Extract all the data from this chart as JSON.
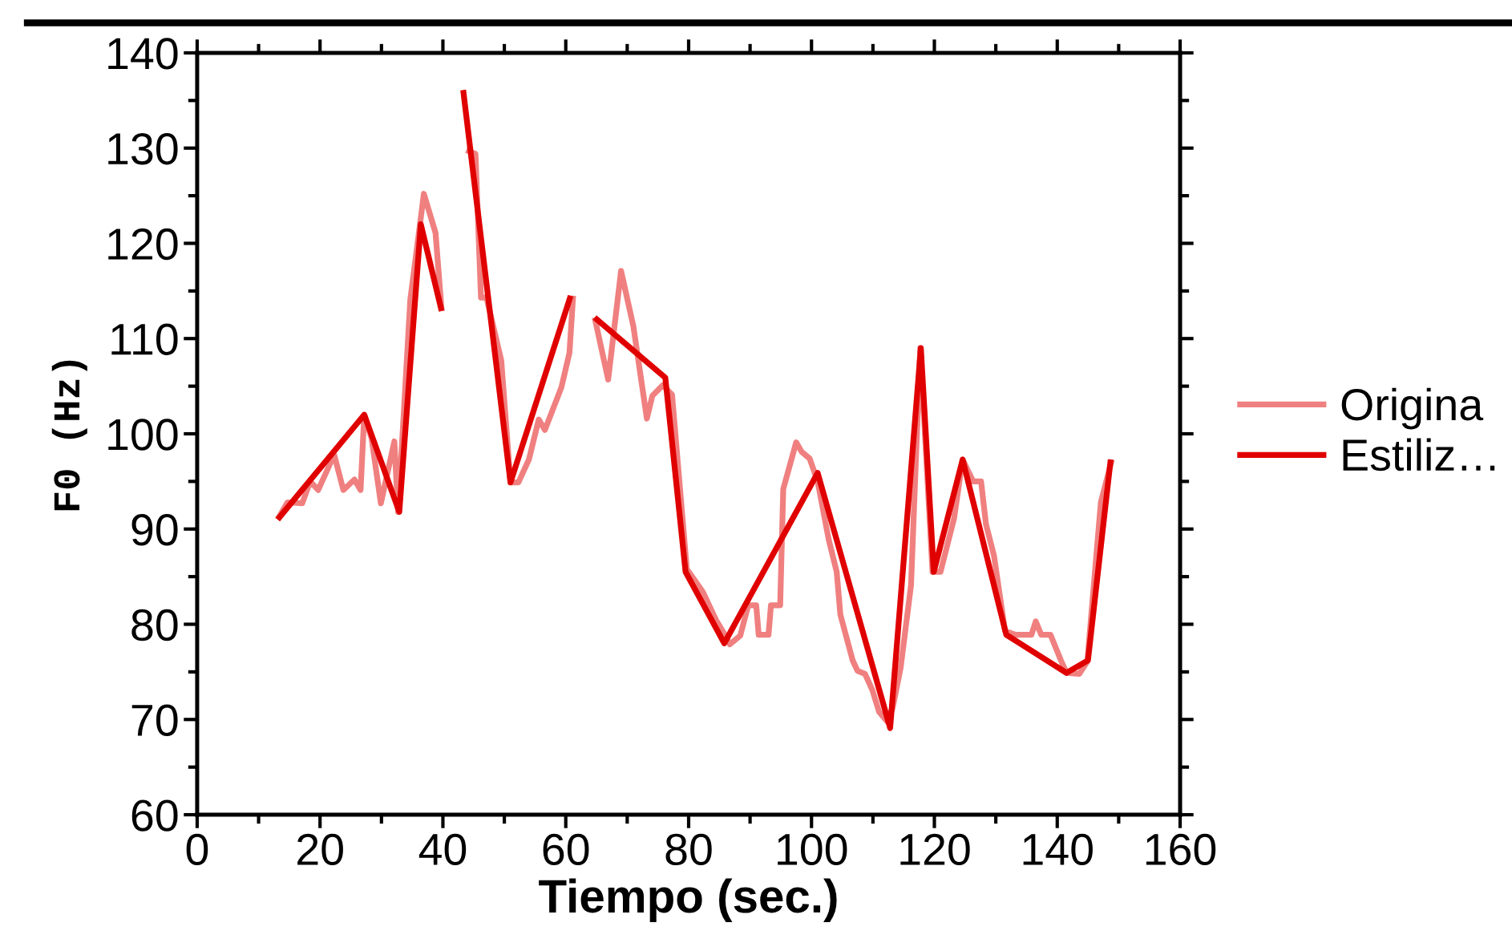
{
  "chart_data": {
    "type": "line",
    "xlabel": "Tiempo (sec.)",
    "ylabel": "F0 (Hz)",
    "xlim": [
      0,
      160
    ],
    "ylim": [
      60,
      140
    ],
    "xticks": [
      0,
      {
        "value": 10,
        "label": null
      },
      20,
      {
        "value": 30,
        "label": null
      },
      40,
      {
        "value": 50,
        "label": null
      },
      60,
      {
        "value": 70,
        "label": null
      },
      80,
      {
        "value": 90,
        "label": null
      },
      100,
      {
        "value": 110,
        "label": null
      },
      120,
      {
        "value": 130,
        "label": null
      },
      140,
      {
        "value": 150,
        "label": null
      },
      160
    ],
    "yticks": [
      60,
      {
        "value": 65,
        "label": null
      },
      70,
      {
        "value": 75,
        "label": null
      },
      80,
      {
        "value": 85,
        "label": null
      },
      90,
      {
        "value": 95,
        "label": null
      },
      100,
      {
        "value": 105,
        "label": null
      },
      110,
      {
        "value": 115,
        "label": null
      },
      120,
      {
        "value": 125,
        "label": null
      },
      130,
      {
        "value": 135,
        "label": null
      },
      140
    ],
    "grid": false,
    "legend": "right",
    "marker": "none",
    "line_style": "solid",
    "series": [
      {
        "name": "Origina",
        "color": "#f08080",
        "x": [
          13.1,
          14.7,
          17.1,
          18.4,
          19.7,
          22.3,
          23.8,
          25.6,
          26.6,
          27.2,
          28.4,
          29.9,
          32.1,
          32.7,
          34.7,
          36.9,
          38.8,
          39.8,
          41.8,
          43.8,
          45.3,
          46.2,
          47.1,
          49.5,
          51.0,
          52.3,
          54.0,
          55.6,
          56.6,
          59.3,
          60.6,
          61.2,
          63.0,
          64.7,
          66.9,
          69.0,
          71.0,
          73.2,
          74.1,
          75.8,
          77.3,
          79.7,
          82.3,
          84.5,
          85.8,
          86.7,
          88.4,
          89.7,
          91.0,
          91.4,
          93.0,
          93.4,
          94.9,
          95.4,
          97.5,
          98.4,
          99.7,
          101.0,
          102.8,
          104.1,
          104.7,
          106.7,
          107.5,
          108.7,
          109.9,
          111.0,
          112.3,
          113.2,
          114.5,
          116.2,
          117.7,
          119.7,
          121.0,
          123.2,
          124.6,
          126.3,
          127.6,
          128.4,
          129.7,
          131.5,
          133.2,
          135.8,
          136.5,
          137.4,
          138.9,
          140.6,
          141.5,
          143.6,
          144.9,
          147.1,
          148.9
        ],
        "values": [
          91.0,
          92.8,
          92.7,
          95.0,
          94.1,
          97.8,
          94.1,
          95.2,
          94.1,
          102.0,
          99.5,
          92.7,
          99.2,
          91.8,
          114.1,
          125.2,
          121.1,
          112.9,
          null,
          129.8,
          129.4,
          114.3,
          114.3,
          107.7,
          94.9,
          94.9,
          97.3,
          101.5,
          100.4,
          104.9,
          108.5,
          114.5,
          null,
          112.2,
          105.7,
          117.1,
          111.3,
          101.6,
          104.0,
          105.1,
          104.1,
          85.8,
          83.4,
          80.4,
          79.0,
          77.9,
          78.8,
          82.0,
          82.0,
          78.9,
          78.9,
          82.0,
          82.0,
          94.2,
          99.1,
          98.1,
          97.4,
          95.0,
          88.9,
          85.5,
          81.0,
          76.2,
          75.1,
          74.8,
          73.1,
          70.8,
          69.8,
          71.2,
          75.4,
          84.1,
          109.0,
          85.5,
          85.5,
          91.1,
          97.3,
          95.0,
          95.0,
          90.5,
          87.2,
          79.3,
          78.9,
          78.9,
          80.3,
          78.9,
          78.9,
          76.2,
          74.9,
          74.8,
          76.1,
          92.8,
          97.3
        ]
      },
      {
        "name": "Estiliz…",
        "color": "#e00000",
        "x": [
          13.1,
          27.2,
          32.9,
          36.4,
          39.8,
          41.5,
          43.3,
          51.0,
          60.8,
          63.0,
          64.7,
          76.2,
          79.5,
          85.8,
          101.0,
          112.8,
          117.8,
          119.9,
          124.6,
          131.7,
          141.5,
          145.0,
          148.7
        ],
        "values": [
          91.0,
          102.0,
          91.8,
          122.0,
          112.9,
          null,
          136.1,
          94.9,
          114.5,
          null,
          112.2,
          105.9,
          85.5,
          78.0,
          95.9,
          69.1,
          109.0,
          85.5,
          97.3,
          78.9,
          74.9,
          76.2,
          97.3
        ]
      }
    ]
  }
}
